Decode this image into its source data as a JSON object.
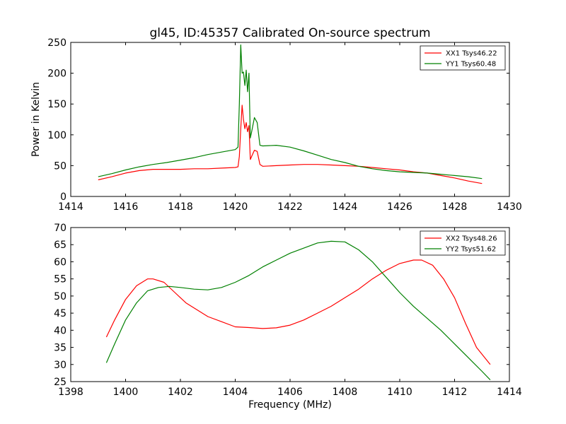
{
  "figure": {
    "title": "gl45, ID:45357 Calibrated On-source spectrum"
  },
  "chart_data": [
    {
      "type": "line",
      "title": "gl45, ID:45357 Calibrated On-source spectrum",
      "xlabel": "",
      "ylabel": "Power in Kelvin",
      "xlim": [
        1414,
        1430
      ],
      "ylim": [
        0,
        250
      ],
      "xticks": [
        1414,
        1416,
        1418,
        1420,
        1422,
        1424,
        1426,
        1428,
        1430
      ],
      "yticks": [
        0,
        50,
        100,
        150,
        200,
        250
      ],
      "grid": false,
      "legend_position": "top-right",
      "series": [
        {
          "name": "XX1 Tsys46.22",
          "color": "#ff0000",
          "x": [
            1415.0,
            1415.5,
            1416.0,
            1416.5,
            1417.0,
            1417.5,
            1418.0,
            1418.5,
            1419.0,
            1419.5,
            1420.0,
            1420.1,
            1420.15,
            1420.2,
            1420.25,
            1420.3,
            1420.35,
            1420.4,
            1420.45,
            1420.5,
            1420.55,
            1420.6,
            1420.7,
            1420.8,
            1420.9,
            1421.0,
            1421.5,
            1422.0,
            1422.5,
            1423.0,
            1423.5,
            1424.0,
            1424.5,
            1425.0,
            1425.5,
            1426.0,
            1426.5,
            1427.0,
            1427.5,
            1428.0,
            1428.5,
            1429.0
          ],
          "y": [
            27,
            32,
            38,
            42,
            44,
            44,
            44,
            45,
            45,
            46,
            47,
            48,
            65,
            110,
            148,
            125,
            110,
            120,
            105,
            115,
            60,
            65,
            75,
            73,
            52,
            49,
            50,
            51,
            52,
            52,
            51,
            50,
            49,
            47,
            45,
            43,
            40,
            38,
            34,
            30,
            25,
            21
          ]
        },
        {
          "name": "YY1 Tsys60.48",
          "color": "#008000",
          "x": [
            1415.0,
            1415.5,
            1416.0,
            1416.5,
            1417.0,
            1417.5,
            1418.0,
            1418.5,
            1419.0,
            1419.5,
            1420.0,
            1420.1,
            1420.15,
            1420.2,
            1420.25,
            1420.3,
            1420.35,
            1420.4,
            1420.45,
            1420.5,
            1420.55,
            1420.6,
            1420.7,
            1420.8,
            1420.9,
            1421.0,
            1421.5,
            1422.0,
            1422.5,
            1423.0,
            1423.5,
            1424.0,
            1424.5,
            1425.0,
            1425.5,
            1426.0,
            1426.5,
            1427.0,
            1427.5,
            1428.0,
            1428.5,
            1429.0
          ],
          "y": [
            32,
            37,
            43,
            48,
            52,
            55,
            59,
            63,
            68,
            72,
            76,
            80,
            150,
            246,
            200,
            202,
            180,
            205,
            170,
            200,
            95,
            105,
            128,
            120,
            83,
            82,
            83,
            80,
            74,
            67,
            60,
            55,
            49,
            45,
            42,
            40,
            39,
            38,
            36,
            34,
            32,
            29
          ]
        }
      ]
    },
    {
      "type": "line",
      "title": "",
      "xlabel": "Frequency (MHz)",
      "ylabel": "",
      "xlim": [
        1398,
        1414
      ],
      "ylim": [
        25,
        70
      ],
      "xticks": [
        1398,
        1400,
        1402,
        1404,
        1406,
        1408,
        1410,
        1412,
        1414
      ],
      "yticks": [
        25,
        30,
        35,
        40,
        45,
        50,
        55,
        60,
        65,
        70
      ],
      "grid": false,
      "legend_position": "top-right",
      "series": [
        {
          "name": "XX2 Tsys48.26",
          "color": "#ff0000",
          "x": [
            1399.3,
            1399.6,
            1400.0,
            1400.4,
            1400.8,
            1401.0,
            1401.4,
            1401.8,
            1402.2,
            1402.6,
            1403.0,
            1403.5,
            1404.0,
            1404.5,
            1405.0,
            1405.5,
            1406.0,
            1406.5,
            1407.0,
            1407.5,
            1408.0,
            1408.5,
            1409.0,
            1409.5,
            1410.0,
            1410.5,
            1410.8,
            1411.2,
            1411.6,
            1412.0,
            1412.4,
            1412.8,
            1413.3
          ],
          "y": [
            38,
            43,
            49,
            53,
            55,
            55,
            54,
            51,
            48,
            46,
            44,
            42.5,
            41,
            40.8,
            40.5,
            40.7,
            41.5,
            43,
            45,
            47,
            49.5,
            52,
            55,
            57.5,
            59.5,
            60.5,
            60.5,
            59,
            55,
            49.5,
            42,
            35,
            30
          ]
        },
        {
          "name": "YY2 Tsys51.62",
          "color": "#008000",
          "x": [
            1399.3,
            1399.6,
            1400.0,
            1400.4,
            1400.8,
            1401.2,
            1401.6,
            1402.0,
            1402.5,
            1403.0,
            1403.5,
            1404.0,
            1404.5,
            1405.0,
            1405.5,
            1406.0,
            1406.5,
            1407.0,
            1407.5,
            1408.0,
            1408.5,
            1409.0,
            1409.5,
            1410.0,
            1410.5,
            1411.0,
            1411.5,
            1412.0,
            1412.5,
            1413.0,
            1413.3
          ],
          "y": [
            30.5,
            36,
            43,
            48,
            51.5,
            52.5,
            52.8,
            52.5,
            52,
            51.8,
            52.5,
            54,
            56,
            58.5,
            60.5,
            62.5,
            64,
            65.5,
            66,
            65.8,
            63.5,
            60,
            55.5,
            51,
            47,
            43.5,
            40,
            36,
            32,
            28,
            25.5
          ]
        }
      ]
    }
  ]
}
